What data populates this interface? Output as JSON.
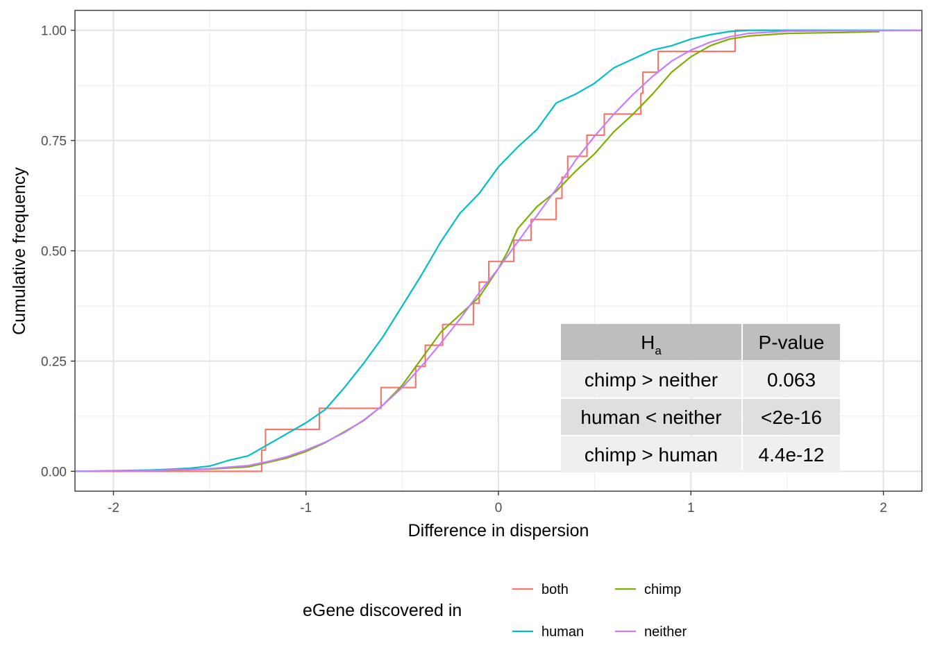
{
  "chart_data": {
    "type": "line",
    "subtype": "empirical-cdf-step",
    "xlabel": "Difference in dispersion",
    "ylabel": "Cumulative frequency",
    "xlim": [
      -2.2,
      2.2
    ],
    "ylim": [
      -0.045,
      1.045
    ],
    "x_ticks": [
      -2,
      -1,
      0,
      1,
      2
    ],
    "x_tick_labels": [
      "-2",
      "-1",
      "0",
      "1",
      "2"
    ],
    "y_ticks": [
      0,
      0.25,
      0.5,
      0.75,
      1
    ],
    "y_tick_labels": [
      "0.00",
      "0.25",
      "0.50",
      "0.75",
      "1.00"
    ],
    "grid": true,
    "legend": {
      "title": "eGene discovered in",
      "position": "bottom"
    },
    "series": [
      {
        "name": "both",
        "color": "#F8766D",
        "step": true,
        "points": [
          [
            -2.2,
            0
          ],
          [
            -1.23,
            0
          ],
          [
            -1.23,
            0.048
          ],
          [
            -1.21,
            0.048
          ],
          [
            -1.21,
            0.095
          ],
          [
            -0.93,
            0.095
          ],
          [
            -0.93,
            0.143
          ],
          [
            -0.61,
            0.143
          ],
          [
            -0.61,
            0.19
          ],
          [
            -0.43,
            0.19
          ],
          [
            -0.43,
            0.238
          ],
          [
            -0.38,
            0.238
          ],
          [
            -0.38,
            0.286
          ],
          [
            -0.29,
            0.286
          ],
          [
            -0.29,
            0.333
          ],
          [
            -0.13,
            0.333
          ],
          [
            -0.13,
            0.381
          ],
          [
            -0.1,
            0.381
          ],
          [
            -0.1,
            0.429
          ],
          [
            -0.05,
            0.429
          ],
          [
            -0.05,
            0.476
          ],
          [
            0.08,
            0.476
          ],
          [
            0.08,
            0.524
          ],
          [
            0.17,
            0.524
          ],
          [
            0.17,
            0.571
          ],
          [
            0.3,
            0.571
          ],
          [
            0.3,
            0.619
          ],
          [
            0.33,
            0.619
          ],
          [
            0.33,
            0.667
          ],
          [
            0.36,
            0.667
          ],
          [
            0.36,
            0.714
          ],
          [
            0.46,
            0.714
          ],
          [
            0.46,
            0.762
          ],
          [
            0.55,
            0.762
          ],
          [
            0.55,
            0.81
          ],
          [
            0.74,
            0.81
          ],
          [
            0.74,
            0.857
          ],
          [
            0.75,
            0.857
          ],
          [
            0.75,
            0.905
          ],
          [
            0.83,
            0.905
          ],
          [
            0.83,
            0.952
          ],
          [
            1.23,
            0.952
          ],
          [
            1.23,
            1.0
          ],
          [
            2.2,
            1.0
          ]
        ]
      },
      {
        "name": "chimp",
        "color": "#7CAE00",
        "points": [
          [
            -2.2,
            0
          ],
          [
            -1.8,
            0.002
          ],
          [
            -1.5,
            0.005
          ],
          [
            -1.3,
            0.01
          ],
          [
            -1.2,
            0.02
          ],
          [
            -1.1,
            0.03
          ],
          [
            -1.0,
            0.045
          ],
          [
            -0.9,
            0.065
          ],
          [
            -0.8,
            0.09
          ],
          [
            -0.7,
            0.115
          ],
          [
            -0.6,
            0.15
          ],
          [
            -0.5,
            0.195
          ],
          [
            -0.4,
            0.255
          ],
          [
            -0.3,
            0.315
          ],
          [
            -0.2,
            0.355
          ],
          [
            -0.1,
            0.395
          ],
          [
            0.0,
            0.46
          ],
          [
            0.05,
            0.5
          ],
          [
            0.1,
            0.55
          ],
          [
            0.2,
            0.6
          ],
          [
            0.3,
            0.635
          ],
          [
            0.4,
            0.68
          ],
          [
            0.5,
            0.72
          ],
          [
            0.6,
            0.77
          ],
          [
            0.7,
            0.81
          ],
          [
            0.8,
            0.855
          ],
          [
            0.9,
            0.905
          ],
          [
            1.0,
            0.94
          ],
          [
            1.1,
            0.965
          ],
          [
            1.2,
            0.98
          ],
          [
            1.3,
            0.987
          ],
          [
            1.5,
            0.993
          ],
          [
            1.8,
            0.995
          ],
          [
            1.98,
            0.997
          ]
        ]
      },
      {
        "name": "human",
        "color": "#00BFC4",
        "points": [
          [
            -2.2,
            0
          ],
          [
            -1.8,
            0.003
          ],
          [
            -1.6,
            0.007
          ],
          [
            -1.5,
            0.012
          ],
          [
            -1.4,
            0.025
          ],
          [
            -1.3,
            0.035
          ],
          [
            -1.2,
            0.06
          ],
          [
            -1.1,
            0.085
          ],
          [
            -1.0,
            0.11
          ],
          [
            -0.9,
            0.14
          ],
          [
            -0.8,
            0.19
          ],
          [
            -0.7,
            0.245
          ],
          [
            -0.6,
            0.305
          ],
          [
            -0.5,
            0.375
          ],
          [
            -0.4,
            0.445
          ],
          [
            -0.3,
            0.52
          ],
          [
            -0.2,
            0.585
          ],
          [
            -0.1,
            0.63
          ],
          [
            0.0,
            0.69
          ],
          [
            0.1,
            0.735
          ],
          [
            0.2,
            0.775
          ],
          [
            0.3,
            0.835
          ],
          [
            0.4,
            0.855
          ],
          [
            0.5,
            0.88
          ],
          [
            0.6,
            0.915
          ],
          [
            0.7,
            0.935
          ],
          [
            0.8,
            0.955
          ],
          [
            0.9,
            0.965
          ],
          [
            1.0,
            0.98
          ],
          [
            1.1,
            0.99
          ],
          [
            1.2,
            0.997
          ],
          [
            1.3,
            1.0
          ],
          [
            2.2,
            1.0
          ]
        ]
      },
      {
        "name": "neither",
        "color": "#C77CFF",
        "points": [
          [
            -2.2,
            0
          ],
          [
            -1.8,
            0.002
          ],
          [
            -1.5,
            0.006
          ],
          [
            -1.3,
            0.013
          ],
          [
            -1.2,
            0.022
          ],
          [
            -1.1,
            0.033
          ],
          [
            -1.0,
            0.048
          ],
          [
            -0.9,
            0.066
          ],
          [
            -0.8,
            0.088
          ],
          [
            -0.7,
            0.116
          ],
          [
            -0.6,
            0.15
          ],
          [
            -0.5,
            0.19
          ],
          [
            -0.4,
            0.238
          ],
          [
            -0.3,
            0.29
          ],
          [
            -0.2,
            0.345
          ],
          [
            -0.1,
            0.405
          ],
          [
            0.0,
            0.46
          ],
          [
            0.1,
            0.52
          ],
          [
            0.2,
            0.58
          ],
          [
            0.3,
            0.64
          ],
          [
            0.4,
            0.705
          ],
          [
            0.5,
            0.76
          ],
          [
            0.6,
            0.81
          ],
          [
            0.7,
            0.855
          ],
          [
            0.8,
            0.895
          ],
          [
            0.9,
            0.93
          ],
          [
            1.0,
            0.955
          ],
          [
            1.1,
            0.973
          ],
          [
            1.2,
            0.985
          ],
          [
            1.3,
            0.993
          ],
          [
            1.5,
            0.998
          ],
          [
            2.2,
            1.0
          ]
        ]
      }
    ],
    "annotation_table": {
      "headers": [
        "H",
        "P-value"
      ],
      "header_subscript": "a",
      "rows": [
        [
          "chimp > neither",
          "0.063"
        ],
        [
          "human < neither",
          "<2e-16"
        ],
        [
          "chimp > human",
          "4.4e-12"
        ]
      ],
      "colors": {
        "header_bg": "#BEBEBE",
        "row_bg": [
          "#EFEFEF",
          "#DFDFDF",
          "#EFEFEF"
        ]
      }
    }
  }
}
